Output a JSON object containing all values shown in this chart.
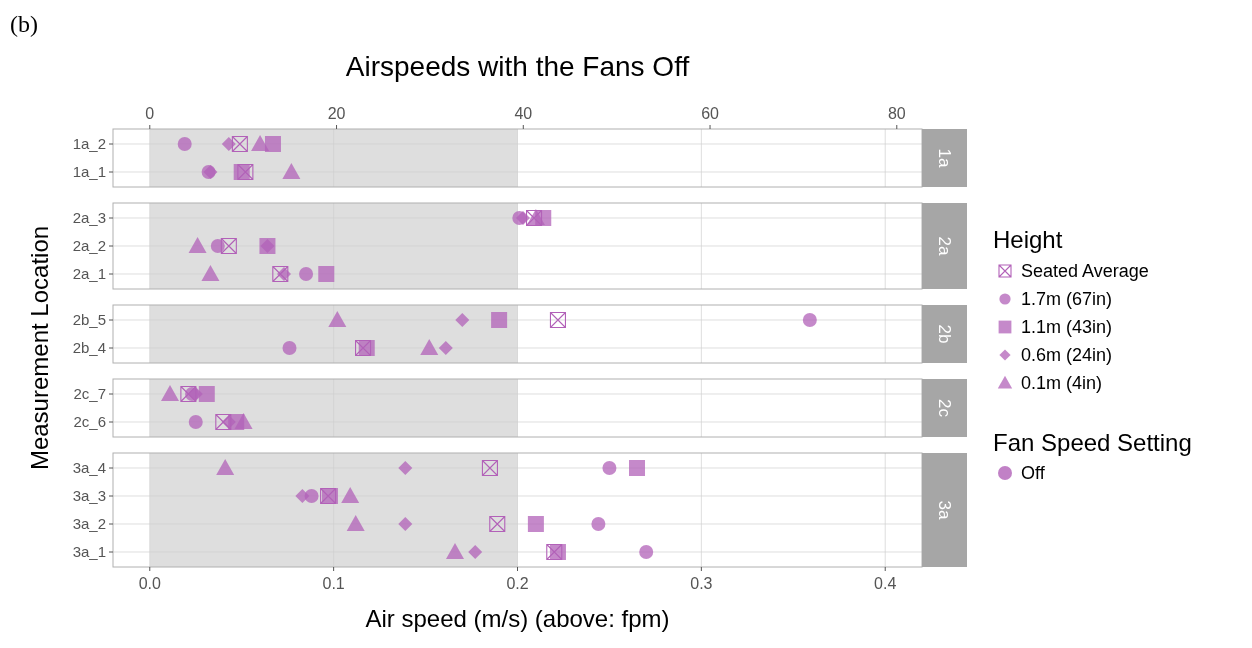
{
  "chart_data": [
    {
      "type": "scatter",
      "orientation": "horizontal",
      "title": "Airspeeds with the Fans Off",
      "ylabel": "Measurement Location",
      "legend": "right",
      "legend_title": "Height",
      "annotations": [
        "1a",
        "(b)",
        "Fan Speed Setting",
        "Off"
      ],
      "tick_labels": "y",
      "grid": true,
      "xlim": [
        -0.02,
        0.42
      ],
      "xticks": [
        0,
        0.1,
        0.2,
        0.3,
        0.4
      ],
      "x2lim": [
        -3.94,
        82.7
      ],
      "x2ticks": [
        0,
        20,
        40,
        60,
        80
      ],
      "bands": [
        {
          "axis": "x",
          "from": 0,
          "to": 0.2,
          "color": "#dedede"
        }
      ],
      "categories": [
        "1a_2",
        "1a_1"
      ],
      "series": [
        {
          "name": "Seated Average",
          "color": "#b261b8",
          "marker": "cross",
          "values": [
            0.049,
            0.052
          ]
        },
        {
          "name": "1.7m (67in)",
          "color": "#b261b8",
          "marker": "circle",
          "values": [
            0.019,
            0.032
          ]
        },
        {
          "name": "1.1m (43in)",
          "color": "#b261b8",
          "marker": "square",
          "values": [
            0.067,
            0.05
          ]
        },
        {
          "name": "0.6m (24in)",
          "color": "#b261b8",
          "marker": "diamond",
          "values": [
            0.043,
            0.033
          ]
        },
        {
          "name": "0.1m (4in)",
          "color": "#b261b8",
          "marker": "triangle",
          "values": [
            0.06,
            0.077
          ]
        }
      ]
    },
    {
      "type": "scatter",
      "orientation": "horizontal",
      "annotations": [
        "2a"
      ],
      "tick_labels": "y",
      "grid": true,
      "xlim": [
        -0.02,
        0.42
      ],
      "xticks": [
        0,
        0.1,
        0.2,
        0.3,
        0.4
      ],
      "bands": [
        {
          "axis": "x",
          "from": 0,
          "to": 0.2,
          "color": "#dedede"
        }
      ],
      "categories": [
        "2a_3",
        "2a_2",
        "2a_1"
      ],
      "series": [
        {
          "color": "#b261b8",
          "marker": "cross",
          "values": [
            0.209,
            0.043,
            0.071
          ]
        },
        {
          "color": "#b261b8",
          "marker": "circle",
          "values": [
            0.201,
            0.037,
            0.085
          ]
        },
        {
          "color": "#b261b8",
          "marker": "square",
          "values": [
            0.214,
            0.064,
            0.096
          ]
        },
        {
          "color": "#b261b8",
          "marker": "diamond",
          "values": [
            0.203,
            0.064,
            0.073
          ]
        },
        {
          "color": "#b261b8",
          "marker": "triangle",
          "values": [
            0.21,
            0.026,
            0.033
          ]
        }
      ]
    },
    {
      "type": "scatter",
      "orientation": "horizontal",
      "annotations": [
        "2b"
      ],
      "tick_labels": "y",
      "grid": true,
      "xlim": [
        -0.02,
        0.42
      ],
      "xticks": [
        0,
        0.1,
        0.2,
        0.3,
        0.4
      ],
      "bands": [
        {
          "axis": "x",
          "from": 0,
          "to": 0.2,
          "color": "#dedede"
        }
      ],
      "categories": [
        "2b_5",
        "2b_4"
      ],
      "series": [
        {
          "color": "#b261b8",
          "marker": "cross",
          "values": [
            0.222,
            0.116
          ]
        },
        {
          "color": "#b261b8",
          "marker": "circle",
          "values": [
            0.359,
            0.076
          ]
        },
        {
          "color": "#b261b8",
          "marker": "square",
          "values": [
            0.19,
            0.118
          ]
        },
        {
          "color": "#b261b8",
          "marker": "diamond",
          "values": [
            0.17,
            0.161
          ]
        },
        {
          "color": "#b261b8",
          "marker": "triangle",
          "values": [
            0.102,
            0.152
          ]
        }
      ]
    },
    {
      "type": "scatter",
      "orientation": "horizontal",
      "annotations": [
        "2c"
      ],
      "tick_labels": "y",
      "grid": true,
      "xlim": [
        -0.02,
        0.42
      ],
      "xticks": [
        0,
        0.1,
        0.2,
        0.3,
        0.4
      ],
      "bands": [
        {
          "axis": "x",
          "from": 0,
          "to": 0.2,
          "color": "#dedede"
        }
      ],
      "categories": [
        "2c_7",
        "2c_6"
      ],
      "series": [
        {
          "color": "#b261b8",
          "marker": "cross",
          "values": [
            0.021,
            0.04
          ]
        },
        {
          "color": "#b261b8",
          "marker": "circle",
          "values": [
            0.023,
            0.025
          ]
        },
        {
          "color": "#b261b8",
          "marker": "square",
          "values": [
            0.031,
            0.047
          ]
        },
        {
          "color": "#b261b8",
          "marker": "diamond",
          "values": [
            0.025,
            0.043
          ]
        },
        {
          "color": "#b261b8",
          "marker": "triangle",
          "values": [
            0.011,
            0.051
          ]
        }
      ]
    },
    {
      "type": "scatter",
      "orientation": "horizontal",
      "annotations": [
        "3a"
      ],
      "xlabel": "Air speed (m/s) (above: fpm)",
      "grid": true,
      "xlim": [
        -0.02,
        0.42
      ],
      "xticks": [
        {
          "value": 0,
          "label": "0.0"
        },
        0.1,
        0.2,
        0.3,
        0.4
      ],
      "bands": [
        {
          "axis": "x",
          "from": 0,
          "to": 0.2,
          "color": "#dedede"
        }
      ],
      "categories": [
        "3a_4",
        "3a_3",
        "3a_2",
        "3a_1"
      ],
      "series": [
        {
          "color": "#b261b8",
          "marker": "cross",
          "values": [
            0.185,
            0.097,
            0.189,
            0.22
          ]
        },
        {
          "color": "#b261b8",
          "marker": "circle",
          "values": [
            0.25,
            0.088,
            0.244,
            0.27
          ]
        },
        {
          "color": "#b261b8",
          "marker": "square",
          "values": [
            0.265,
            0.098,
            0.21,
            0.222
          ]
        },
        {
          "color": "#b261b8",
          "marker": "diamond",
          "values": [
            0.139,
            0.083,
            0.139,
            0.177
          ]
        },
        {
          "color": "#b261b8",
          "marker": "triangle",
          "values": [
            0.041,
            0.109,
            0.112,
            0.166
          ]
        }
      ]
    }
  ]
}
